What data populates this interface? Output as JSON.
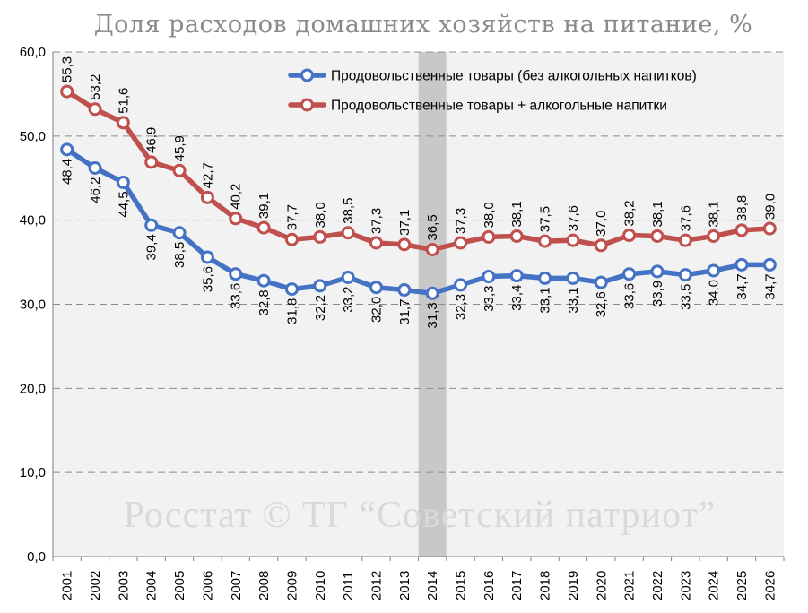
{
  "chart_data": {
    "type": "line",
    "title": "Доля расходов домашних хозяйств на питание, %",
    "watermark": "Росстат © ТГ “Советский патриот”",
    "categories": [
      "2001",
      "2002",
      "2003",
      "2004",
      "2005",
      "2006",
      "2007",
      "2008",
      "2009",
      "2010",
      "2011",
      "2012",
      "2013",
      "2014",
      "2015",
      "2016",
      "2017",
      "2018",
      "2019",
      "2020",
      "2021",
      "2022",
      "2023",
      "2024",
      "2025",
      "2026"
    ],
    "series": [
      {
        "name": "Продовольственные товары (без алкогольных напитков)",
        "color": "#4472c4",
        "values": [
          48.4,
          46.2,
          44.5,
          39.4,
          38.5,
          35.6,
          33.6,
          32.8,
          31.8,
          32.2,
          33.2,
          32.0,
          31.7,
          31.3,
          32.3,
          33.3,
          33.4,
          33.1,
          33.1,
          32.6,
          33.6,
          33.9,
          33.5,
          34.0,
          34.7,
          34.7
        ],
        "labels": [
          "48,4",
          "46,2",
          "44,5",
          "39,4",
          "38,5",
          "35,6",
          "33,6",
          "32,8",
          "31,8",
          "32,2",
          "33,2",
          "32,0",
          "31,7",
          "31,3",
          "32,3",
          "33,3",
          "33,4",
          "33,1",
          "33,1",
          "32,6",
          "33,6",
          "33,9",
          "33,5",
          "34,0",
          "34,7",
          "34,7"
        ]
      },
      {
        "name": "Продовольственные товары + алкогольные напитки",
        "color": "#c0504d",
        "values": [
          55.3,
          53.2,
          51.6,
          46.9,
          45.9,
          42.7,
          40.2,
          39.1,
          37.7,
          38.0,
          38.5,
          37.3,
          37.1,
          36.5,
          37.3,
          38.0,
          38.1,
          37.5,
          37.6,
          37.0,
          38.2,
          38.1,
          37.6,
          38.1,
          38.8,
          39.0
        ],
        "labels": [
          "55,3",
          "53,2",
          "51,6",
          "46,9",
          "45,9",
          "42,7",
          "40,2",
          "39,1",
          "37,7",
          "38,0",
          "38,5",
          "37,3",
          "37,1",
          "36,5",
          "37,3",
          "38,0",
          "38,1",
          "37,5",
          "37,6",
          "37,0",
          "38,2",
          "38,1",
          "37,6",
          "38,1",
          "38,8",
          "39,0"
        ]
      }
    ],
    "yticks": [
      0,
      10,
      20,
      30,
      40,
      50,
      60
    ],
    "ytick_labels": [
      "0,0",
      "10,0",
      "20,0",
      "30,0",
      "40,0",
      "50,0",
      "60,0"
    ],
    "ylim": [
      0,
      60
    ],
    "highlight_category": "2014",
    "grid": true,
    "legend": "top-right",
    "xlabel": "",
    "ylabel": ""
  }
}
